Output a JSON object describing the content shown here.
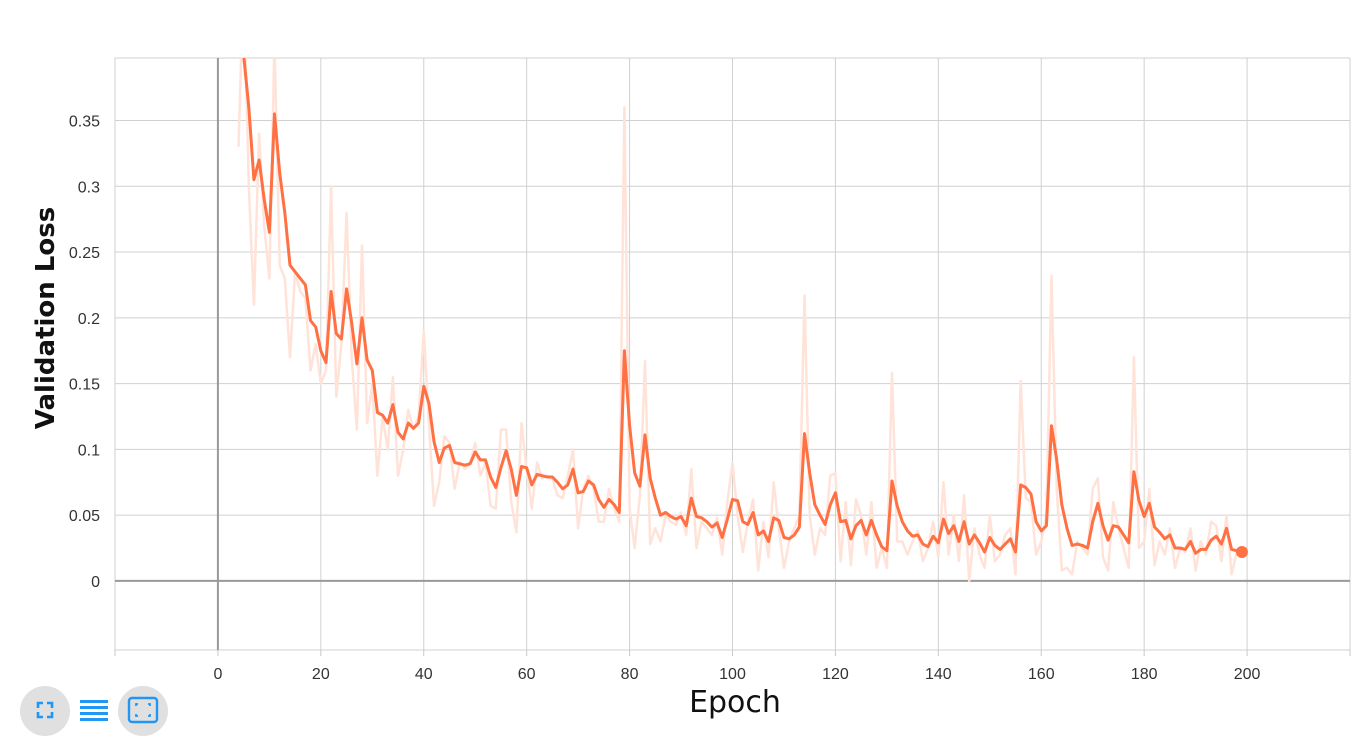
{
  "chart_data": {
    "type": "line",
    "title": "",
    "xlabel": "Epoch",
    "ylabel": "Validation Loss",
    "xlim": [
      -20,
      220
    ],
    "ylim": [
      -0.0525,
      0.3975
    ],
    "x_ticks": [
      0,
      20,
      40,
      60,
      80,
      100,
      120,
      140,
      160,
      180,
      200
    ],
    "y_ticks": [
      0,
      0.05,
      0.1,
      0.15,
      0.2,
      0.25,
      0.3,
      0.35
    ],
    "y_tick_labels": [
      "0",
      "0.05",
      "0.1",
      "0.15",
      "0.2",
      "0.25",
      "0.3",
      "0.35"
    ],
    "grid": true,
    "legend": "none",
    "series": [
      {
        "color": "#ff7043",
        "smoothed": true,
        "x_start": 4,
        "values": [
          0.46,
          0.4,
          0.36,
          0.305,
          0.32,
          0.29,
          0.265,
          0.355,
          0.31,
          0.28,
          0.24,
          0.235,
          0.23,
          0.225,
          0.198,
          0.193,
          0.175,
          0.166,
          0.22,
          0.188,
          0.184,
          0.222,
          0.196,
          0.165,
          0.2,
          0.168,
          0.16,
          0.128,
          0.126,
          0.12,
          0.134,
          0.113,
          0.108,
          0.12,
          0.116,
          0.12,
          0.148,
          0.135,
          0.106,
          0.09,
          0.101,
          0.103,
          0.09,
          0.089,
          0.088,
          0.089,
          0.098,
          0.092,
          0.092,
          0.079,
          0.071,
          0.086,
          0.099,
          0.085,
          0.065,
          0.087,
          0.086,
          0.073,
          0.081,
          0.08,
          0.079,
          0.079,
          0.075,
          0.07,
          0.073,
          0.085,
          0.067,
          0.068,
          0.076,
          0.073,
          0.062,
          0.056,
          0.062,
          0.058,
          0.052,
          0.175,
          0.118,
          0.082,
          0.072,
          0.111,
          0.078,
          0.063,
          0.05,
          0.052,
          0.049,
          0.047,
          0.049,
          0.042,
          0.063,
          0.049,
          0.048,
          0.045,
          0.041,
          0.044,
          0.033,
          0.047,
          0.062,
          0.061,
          0.045,
          0.043,
          0.052,
          0.035,
          0.038,
          0.03,
          0.048,
          0.046,
          0.033,
          0.032,
          0.035,
          0.041,
          0.112,
          0.082,
          0.058,
          0.05,
          0.043,
          0.058,
          0.067,
          0.045,
          0.046,
          0.032,
          0.042,
          0.046,
          0.035,
          0.046,
          0.035,
          0.026,
          0.023,
          0.076,
          0.057,
          0.045,
          0.038,
          0.034,
          0.035,
          0.028,
          0.026,
          0.034,
          0.029,
          0.047,
          0.036,
          0.042,
          0.03,
          0.045,
          0.028,
          0.035,
          0.029,
          0.022,
          0.033,
          0.027,
          0.024,
          0.028,
          0.032,
          0.022,
          0.073,
          0.071,
          0.066,
          0.045,
          0.038,
          0.042,
          0.118,
          0.092,
          0.058,
          0.04,
          0.027,
          0.028,
          0.027,
          0.025,
          0.045,
          0.059,
          0.042,
          0.031,
          0.042,
          0.041,
          0.035,
          0.029,
          0.083,
          0.061,
          0.049,
          0.059,
          0.041,
          0.037,
          0.032,
          0.035,
          0.025,
          0.025,
          0.024,
          0.03,
          0.021,
          0.024,
          0.024,
          0.031,
          0.034,
          0.028,
          0.04,
          0.024,
          0.023
        ]
      },
      {
        "color": "#ffe3d9",
        "smoothed": false,
        "x_start": 4,
        "values": [
          0.33,
          0.46,
          0.3,
          0.21,
          0.34,
          0.27,
          0.23,
          0.41,
          0.24,
          0.23,
          0.17,
          0.235,
          0.22,
          0.215,
          0.16,
          0.18,
          0.15,
          0.16,
          0.3,
          0.14,
          0.18,
          0.28,
          0.17,
          0.115,
          0.255,
          0.12,
          0.15,
          0.08,
          0.125,
          0.1,
          0.155,
          0.08,
          0.1,
          0.13,
          0.115,
          0.125,
          0.19,
          0.12,
          0.057,
          0.075,
          0.11,
          0.105,
          0.07,
          0.09,
          0.085,
          0.09,
          0.105,
          0.08,
          0.09,
          0.057,
          0.055,
          0.115,
          0.115,
          0.06,
          0.037,
          0.12,
          0.085,
          0.055,
          0.09,
          0.078,
          0.08,
          0.078,
          0.065,
          0.063,
          0.08,
          0.1,
          0.04,
          0.07,
          0.08,
          0.07,
          0.045,
          0.045,
          0.07,
          0.055,
          0.045,
          0.36,
          0.055,
          0.025,
          0.065,
          0.167,
          0.028,
          0.04,
          0.03,
          0.05,
          0.045,
          0.043,
          0.052,
          0.035,
          0.085,
          0.025,
          0.045,
          0.04,
          0.035,
          0.048,
          0.02,
          0.06,
          0.09,
          0.05,
          0.022,
          0.045,
          0.062,
          0.008,
          0.045,
          0.018,
          0.075,
          0.04,
          0.01,
          0.03,
          0.04,
          0.05,
          0.217,
          0.05,
          0.02,
          0.04,
          0.035,
          0.08,
          0.082,
          0.015,
          0.06,
          0.012,
          0.062,
          0.05,
          0.02,
          0.06,
          0.01,
          0.025,
          0.01,
          0.158,
          0.03,
          0.03,
          0.02,
          0.03,
          0.038,
          0.015,
          0.025,
          0.045,
          0.018,
          0.075,
          0.02,
          0.05,
          0.015,
          0.065,
          0.0,
          0.04,
          0.02,
          0.01,
          0.05,
          0.015,
          0.02,
          0.035,
          0.04,
          0.005,
          0.152,
          0.063,
          0.06,
          0.02,
          0.03,
          0.05,
          0.232,
          0.07,
          0.008,
          0.01,
          0.005,
          0.03,
          0.025,
          0.02,
          0.07,
          0.078,
          0.018,
          0.008,
          0.06,
          0.04,
          0.025,
          0.01,
          0.17,
          0.025,
          0.03,
          0.07,
          0.012,
          0.03,
          0.02,
          0.04,
          0.01,
          0.025,
          0.022,
          0.04,
          0.008,
          0.03,
          0.02,
          0.045,
          0.042,
          0.015,
          0.05,
          0.005,
          0.022
        ]
      }
    ],
    "last_point": {
      "x": 199,
      "y": 0.022
    }
  },
  "toolbar": {
    "buttons": [
      {
        "name": "fullscreen-icon",
        "color": "#2196f3"
      },
      {
        "name": "list-icon",
        "color": "#2196f3"
      },
      {
        "name": "fit-domain-icon",
        "color": "#2196f3"
      }
    ]
  }
}
